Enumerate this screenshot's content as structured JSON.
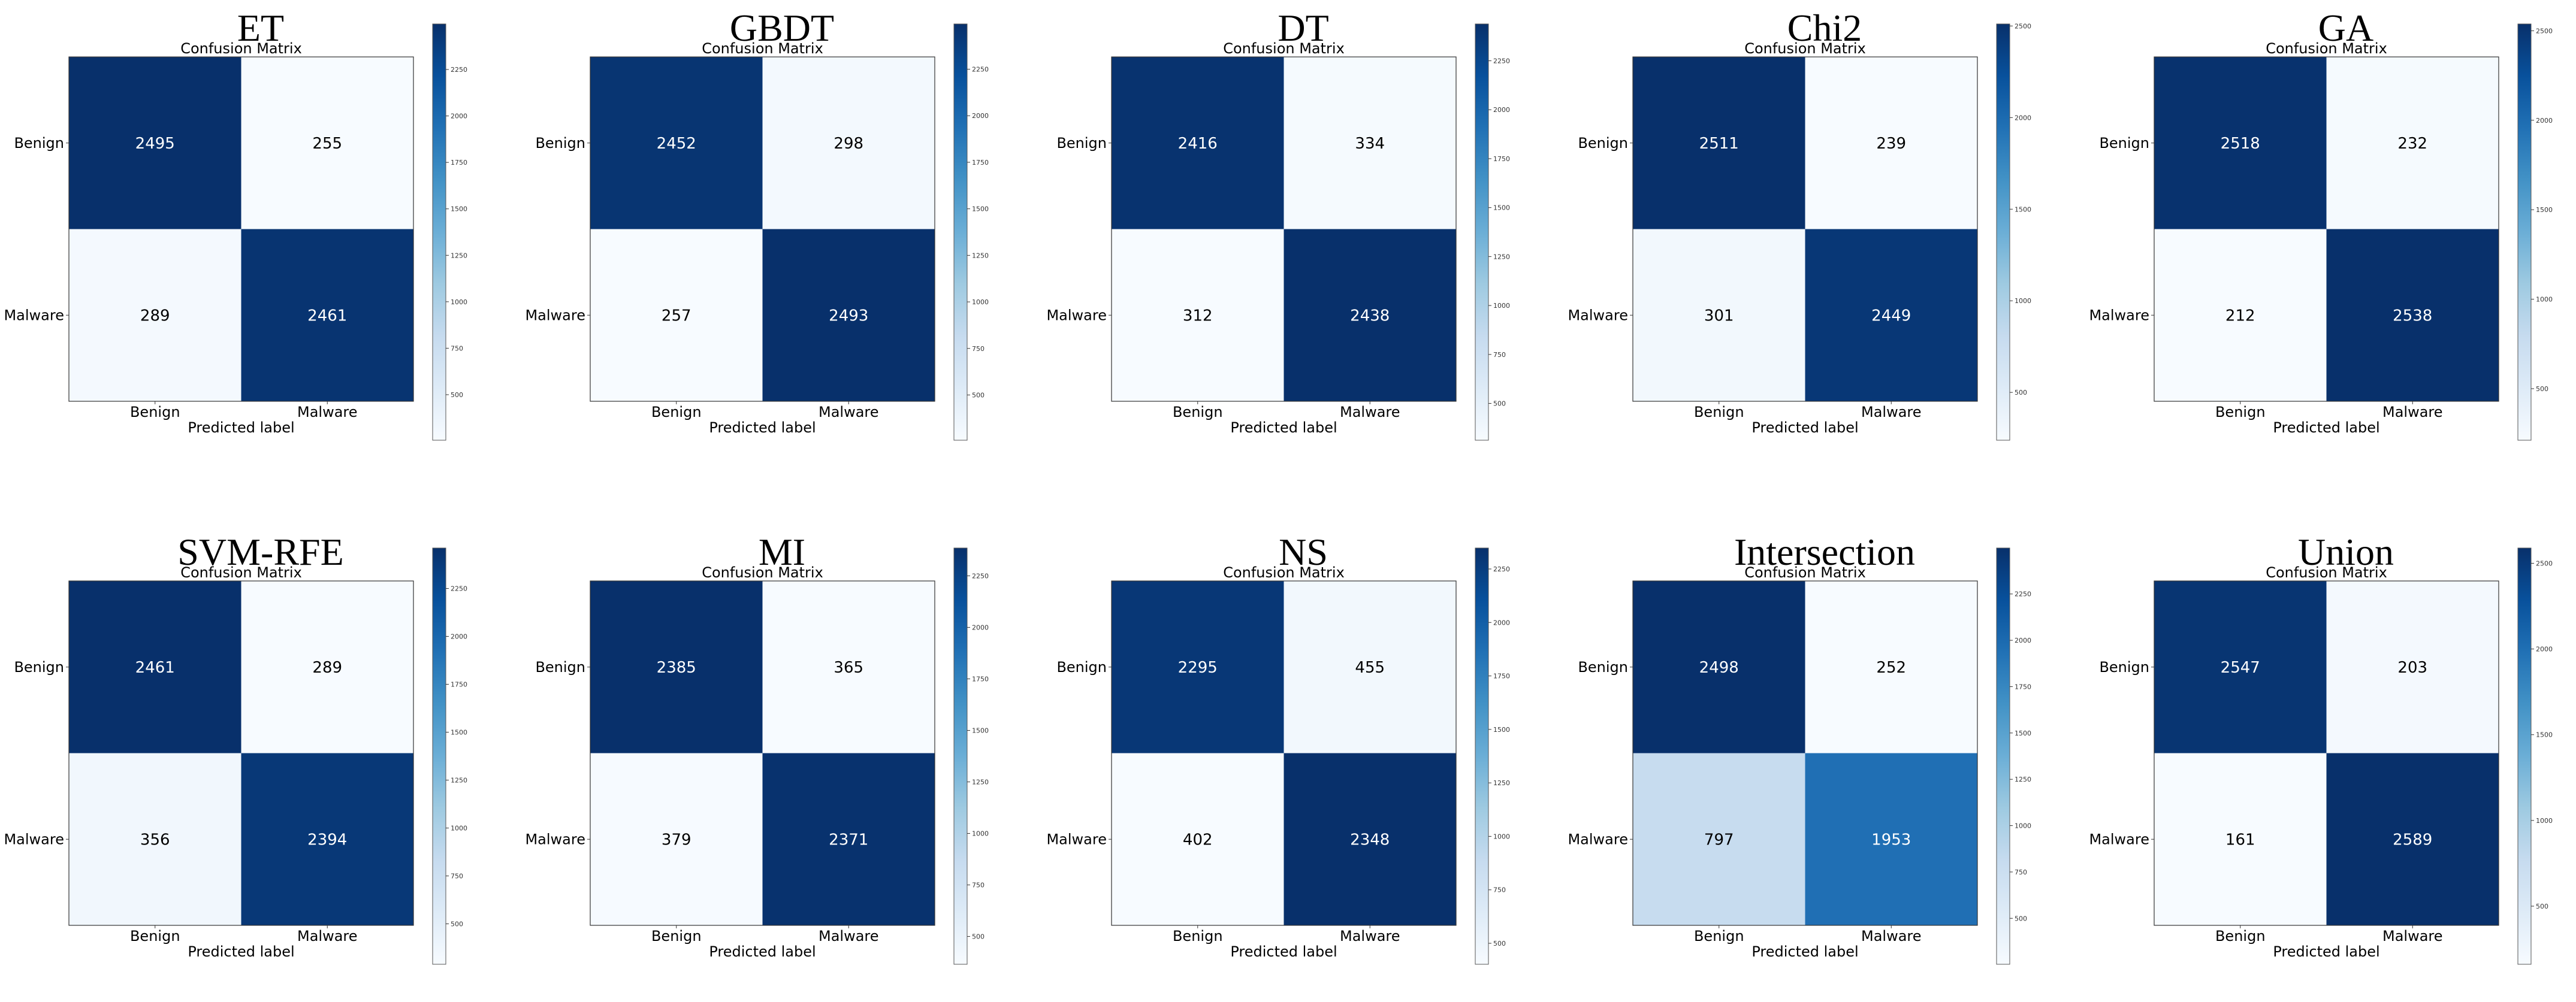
{
  "colors": {
    "light": "#f7fbff",
    "mid": "#c6dbef",
    "steel": "#2171b5",
    "dark": "#08306b"
  },
  "axes": {
    "xlabel": "Predicted label",
    "matrix_title": "Confusion Matrix",
    "class_labels": [
      "Benign",
      "Malware"
    ]
  },
  "chart_data": [
    {
      "type": "heatmap",
      "title": "ET",
      "subtitle": "Confusion Matrix",
      "xlabel": "Predicted label",
      "x_categories": [
        "Benign",
        "Malware"
      ],
      "y_categories": [
        "Benign",
        "Malware"
      ],
      "values": [
        [
          2495,
          255
        ],
        [
          289,
          2461
        ]
      ],
      "vmin": 255,
      "vmax": 2495,
      "colorbar_ticks": [
        "500",
        "750",
        "1000",
        "1250",
        "1500",
        "1750",
        "2000",
        "2250"
      ]
    },
    {
      "type": "heatmap",
      "title": "GBDT",
      "subtitle": "Confusion Matrix",
      "xlabel": "Predicted label",
      "x_categories": [
        "Benign",
        "Malware"
      ],
      "y_categories": [
        "Benign",
        "Malware"
      ],
      "values": [
        [
          2452,
          298
        ],
        [
          257,
          2493
        ]
      ],
      "vmin": 257,
      "vmax": 2493,
      "colorbar_ticks": [
        "500",
        "750",
        "1000",
        "1250",
        "1500",
        "1750",
        "2000",
        "2250"
      ]
    },
    {
      "type": "heatmap",
      "title": "DT",
      "subtitle": "Confusion Matrix",
      "xlabel": "Predicted label",
      "x_categories": [
        "Benign",
        "Malware"
      ],
      "y_categories": [
        "Benign",
        "Malware"
      ],
      "values": [
        [
          2416,
          334
        ],
        [
          312,
          2438
        ]
      ],
      "vmin": 312,
      "vmax": 2438,
      "colorbar_ticks": [
        "500",
        "750",
        "1000",
        "1250",
        "1500",
        "1750",
        "2000",
        "2250"
      ]
    },
    {
      "type": "heatmap",
      "title": "Chi2",
      "subtitle": "Confusion Matrix",
      "xlabel": "Predicted label",
      "x_categories": [
        "Benign",
        "Malware"
      ],
      "y_categories": [
        "Benign",
        "Malware"
      ],
      "values": [
        [
          2511,
          239
        ],
        [
          301,
          2449
        ]
      ],
      "vmin": 239,
      "vmax": 2511,
      "colorbar_ticks": [
        "500",
        "1000",
        "1500",
        "2000",
        "2500"
      ]
    },
    {
      "type": "heatmap",
      "title": "GA",
      "subtitle": "Confusion Matrix",
      "xlabel": "Predicted label",
      "x_categories": [
        "Benign",
        "Malware"
      ],
      "y_categories": [
        "Benign",
        "Malware"
      ],
      "values": [
        [
          2518,
          232
        ],
        [
          212,
          2538
        ]
      ],
      "vmin": 212,
      "vmax": 2538,
      "colorbar_ticks": [
        "500",
        "1000",
        "1500",
        "2000",
        "2500"
      ]
    },
    {
      "type": "heatmap",
      "title": "SVM-RFE",
      "subtitle": "Confusion Matrix",
      "xlabel": "Predicted label",
      "x_categories": [
        "Benign",
        "Malware"
      ],
      "y_categories": [
        "Benign",
        "Malware"
      ],
      "values": [
        [
          2461,
          289
        ],
        [
          356,
          2394
        ]
      ],
      "vmin": 289,
      "vmax": 2461,
      "colorbar_ticks": [
        "500",
        "750",
        "1000",
        "1250",
        "1500",
        "1750",
        "2000",
        "2250"
      ]
    },
    {
      "type": "heatmap",
      "title": "MI",
      "subtitle": "Confusion Matrix",
      "xlabel": "Predicted label",
      "x_categories": [
        "Benign",
        "Malware"
      ],
      "y_categories": [
        "Benign",
        "Malware"
      ],
      "values": [
        [
          2385,
          365
        ],
        [
          379,
          2371
        ]
      ],
      "vmin": 365,
      "vmax": 2385,
      "colorbar_ticks": [
        "500",
        "750",
        "1000",
        "1250",
        "1500",
        "1750",
        "2000",
        "2250"
      ]
    },
    {
      "type": "heatmap",
      "title": "NS",
      "subtitle": "Confusion Matrix",
      "xlabel": "Predicted label",
      "x_categories": [
        "Benign",
        "Malware"
      ],
      "y_categories": [
        "Benign",
        "Malware"
      ],
      "values": [
        [
          2295,
          455
        ],
        [
          402,
          2348
        ]
      ],
      "vmin": 402,
      "vmax": 2348,
      "colorbar_ticks": [
        "500",
        "750",
        "1000",
        "1250",
        "1500",
        "1750",
        "2000",
        "2250"
      ]
    },
    {
      "type": "heatmap",
      "title": "Intersection",
      "subtitle": "Confusion Matrix",
      "xlabel": "Predicted label",
      "x_categories": [
        "Benign",
        "Malware"
      ],
      "y_categories": [
        "Benign",
        "Malware"
      ],
      "values": [
        [
          2498,
          252
        ],
        [
          797,
          1953
        ]
      ],
      "vmin": 252,
      "vmax": 2498,
      "colorbar_ticks": [
        "500",
        "750",
        "1000",
        "1250",
        "1500",
        "1750",
        "2000",
        "2250"
      ]
    },
    {
      "type": "heatmap",
      "title": "Union",
      "subtitle": "Confusion Matrix",
      "xlabel": "Predicted label",
      "x_categories": [
        "Benign",
        "Malware"
      ],
      "y_categories": [
        "Benign",
        "Malware"
      ],
      "values": [
        [
          2547,
          203
        ],
        [
          161,
          2589
        ]
      ],
      "vmin": 161,
      "vmax": 2589,
      "colorbar_ticks": [
        "500",
        "1000",
        "1500",
        "2000",
        "2500"
      ]
    }
  ]
}
